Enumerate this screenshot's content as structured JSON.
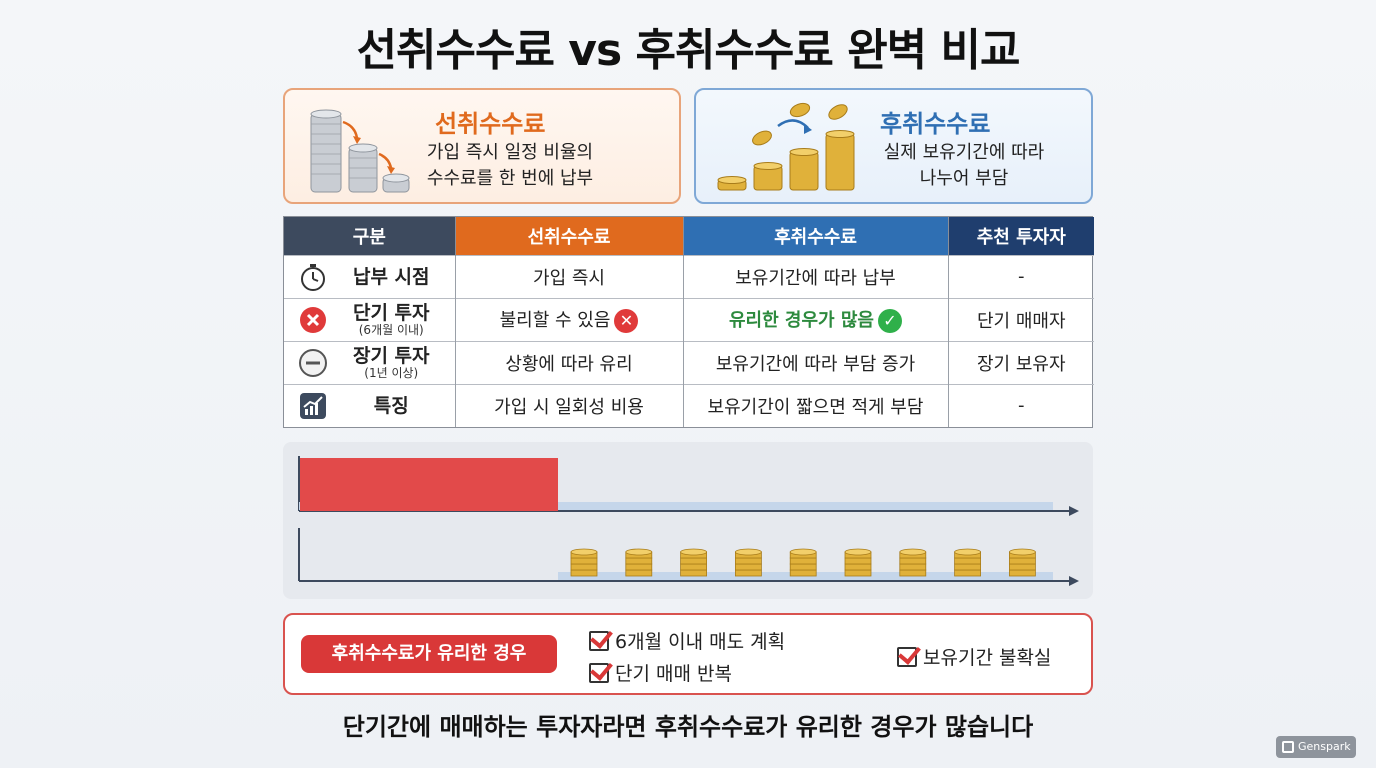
{
  "title": "선취수수료 vs 후취수수료 완벽 비교",
  "cards": {
    "front": {
      "title": "선취수수료",
      "desc_line1": "가입 즉시 일정 비율의",
      "desc_line2": "수수료를 한 번에 납부",
      "icon": "coin-stack-decreasing-icon"
    },
    "back": {
      "title": "후취수수료",
      "desc_line1": "실제 보유기간에 따라",
      "desc_line2": "나누어 부담",
      "icon": "coin-stack-increasing-icon"
    }
  },
  "table": {
    "headers": [
      "구분",
      "선취수수료",
      "후취수수료",
      "추천 투자자"
    ],
    "rows": [
      {
        "icon": "stopwatch-icon",
        "label": "납부 시점",
        "sub": "",
        "front": "가입 즉시",
        "back": "보유기간에 따라 납부",
        "rec": "-"
      },
      {
        "icon": "x-circle-icon",
        "label": "단기 투자",
        "sub": "(6개월 이내)",
        "front": "불리할 수 있음",
        "back": "유리한 경우가 많음",
        "rec": "단기 매매자"
      },
      {
        "icon": "minus-circle-icon",
        "label": "장기 투자",
        "sub": "(1년 이상)",
        "front": "상황에 따라 유리",
        "back": "보유기간에 따라 부담 증가",
        "rec": "장기 보유자"
      },
      {
        "icon": "chart-up-icon",
        "label": "특징",
        "sub": "",
        "front": "가입 시 일회성 비용",
        "back": "보유기간이 짧으면 적게 부담",
        "rec": "-"
      }
    ]
  },
  "chart": {
    "front_bar_color": "#e24a4a",
    "coin_count": 9,
    "coin_color": "#e0b13a"
  },
  "bottom": {
    "pill": "후취수수료가 유리한 경우",
    "checks": [
      "6개월 이내 매도 계획",
      "단기 매매 반복",
      "보유기간 불확실"
    ]
  },
  "conclusion": "단기간에 매매하는 투자자라면 후취수수료가 유리한 경우가 많습니다",
  "badge": "Genspark"
}
